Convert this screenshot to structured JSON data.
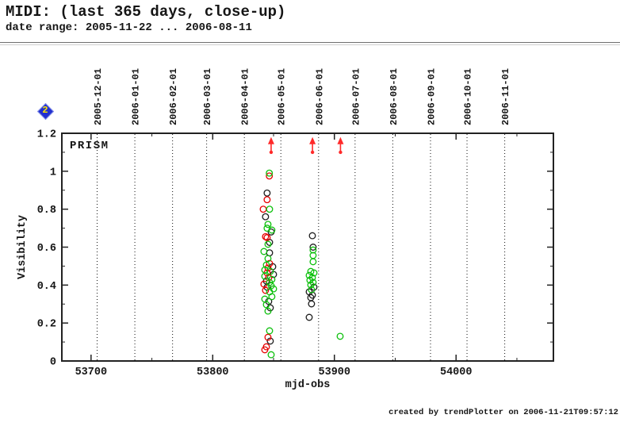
{
  "page": {
    "title": "MIDI: (last 365 days, close-up)",
    "subtitle": "date range: 2005-11-22 ... 2006-08-11",
    "footer": "created by trendPlotter on 2006-11-21T09:57:12"
  },
  "nav": {
    "page_marker_label": "2"
  },
  "chart_data": {
    "type": "scatter",
    "inside_label": "PRISM",
    "xlabel": "mjd-obs",
    "ylabel": "Visibility",
    "xlim": [
      53676,
      54080
    ],
    "ylim": [
      0,
      1.2
    ],
    "grid": "vertical-dotted",
    "legend_position": "none",
    "x_major_ticks": {
      "values": [
        53700,
        53800,
        53900,
        54000
      ],
      "labels": [
        "53700",
        "53800",
        "53900",
        "54000"
      ]
    },
    "x_minor_ticks": [
      53750,
      53850,
      53950,
      54050
    ],
    "y_major_ticks": {
      "values": [
        0,
        0.2,
        0.4,
        0.6,
        0.8,
        1,
        1.2
      ],
      "labels": [
        "0",
        "0.2",
        "0.4",
        "0.6",
        "0.8",
        "1",
        "1.2"
      ]
    },
    "y_minor_ticks": [
      0.1,
      0.3,
      0.5,
      0.7,
      0.9,
      1.1
    ],
    "date_gridlines": [
      {
        "label": "2005-12-01",
        "mjd": 53705
      },
      {
        "label": "2006-01-01",
        "mjd": 53736
      },
      {
        "label": "2006-02-01",
        "mjd": 53767
      },
      {
        "label": "2006-03-01",
        "mjd": 53795
      },
      {
        "label": "2006-04-01",
        "mjd": 53826
      },
      {
        "label": "2006-05-01",
        "mjd": 53856
      },
      {
        "label": "2006-06-01",
        "mjd": 53887
      },
      {
        "label": "2006-07-01",
        "mjd": 53917
      },
      {
        "label": "2006-08-01",
        "mjd": 53948
      },
      {
        "label": "2006-09-01",
        "mjd": 53979
      },
      {
        "label": "2006-10-01",
        "mjd": 54009
      },
      {
        "label": "2006-11-01",
        "mjd": 54040
      }
    ],
    "colors": {
      "black": "#1c1c1c",
      "red": "#e60000",
      "green": "#0cc00c",
      "arrow": "#ff2a2a",
      "frame": "#222222"
    },
    "arrows": [
      {
        "mjd": 53848,
        "base_vis": 1.1,
        "tip_vis": 1.18
      },
      {
        "mjd": 53882,
        "base_vis": 1.1,
        "tip_vis": 1.18
      },
      {
        "mjd": 53905,
        "base_vis": 1.1,
        "tip_vis": 1.18
      }
    ],
    "series": [
      {
        "name": "black",
        "color_key": "black",
        "points": [
          [
            53844.7,
            0.885
          ],
          [
            53843.4,
            0.76
          ],
          [
            53848.0,
            0.68
          ],
          [
            53846.7,
            0.625
          ],
          [
            53846.7,
            0.57
          ],
          [
            53849.3,
            0.497
          ],
          [
            53850.0,
            0.456
          ],
          [
            53844.1,
            0.422
          ],
          [
            53844.7,
            0.389
          ],
          [
            53846.0,
            0.314
          ],
          [
            53847.3,
            0.28
          ],
          [
            53847.3,
            0.105
          ],
          [
            53881.9,
            0.66
          ],
          [
            53882.5,
            0.6
          ],
          [
            53883.2,
            0.389
          ],
          [
            53879.3,
            0.364
          ],
          [
            53881.9,
            0.347
          ],
          [
            53880.6,
            0.334
          ],
          [
            53881.2,
            0.301
          ],
          [
            53879.3,
            0.23
          ]
        ]
      },
      {
        "name": "red",
        "color_key": "red",
        "points": [
          [
            53846.5,
            0.975
          ],
          [
            53844.7,
            0.85
          ],
          [
            53841.5,
            0.8
          ],
          [
            53843.4,
            0.655
          ],
          [
            53844.7,
            0.65
          ],
          [
            53846.7,
            0.514
          ],
          [
            53845.4,
            0.49
          ],
          [
            53844.7,
            0.464
          ],
          [
            53846.0,
            0.439
          ],
          [
            53842.1,
            0.405
          ],
          [
            53843.4,
            0.372
          ],
          [
            53845.4,
            0.125
          ],
          [
            53844.1,
            0.075
          ],
          [
            53842.8,
            0.059
          ]
        ]
      },
      {
        "name": "green",
        "color_key": "green",
        "points": [
          [
            53846.5,
            0.99
          ],
          [
            53846.7,
            0.8
          ],
          [
            53845.4,
            0.72
          ],
          [
            53844.7,
            0.7
          ],
          [
            53848.6,
            0.69
          ],
          [
            53845.4,
            0.615
          ],
          [
            53842.1,
            0.577
          ],
          [
            53845.4,
            0.54
          ],
          [
            53844.1,
            0.506
          ],
          [
            53842.8,
            0.48
          ],
          [
            53847.3,
            0.472
          ],
          [
            53842.8,
            0.447
          ],
          [
            53848.6,
            0.43
          ],
          [
            53846.7,
            0.414
          ],
          [
            53848.0,
            0.397
          ],
          [
            53850.0,
            0.38
          ],
          [
            53846.7,
            0.364
          ],
          [
            53848.6,
            0.339
          ],
          [
            53842.8,
            0.326
          ],
          [
            53844.1,
            0.297
          ],
          [
            53845.4,
            0.263
          ],
          [
            53846.7,
            0.159
          ],
          [
            53848.0,
            0.033
          ],
          [
            53882.5,
            0.585
          ],
          [
            53882.5,
            0.556
          ],
          [
            53882.5,
            0.523
          ],
          [
            53880.6,
            0.472
          ],
          [
            53883.2,
            0.464
          ],
          [
            53879.3,
            0.451
          ],
          [
            53881.9,
            0.439
          ],
          [
            53879.9,
            0.426
          ],
          [
            53882.5,
            0.414
          ],
          [
            53880.6,
            0.401
          ],
          [
            53881.2,
            0.376
          ],
          [
            53904.7,
            0.13
          ]
        ]
      }
    ]
  }
}
